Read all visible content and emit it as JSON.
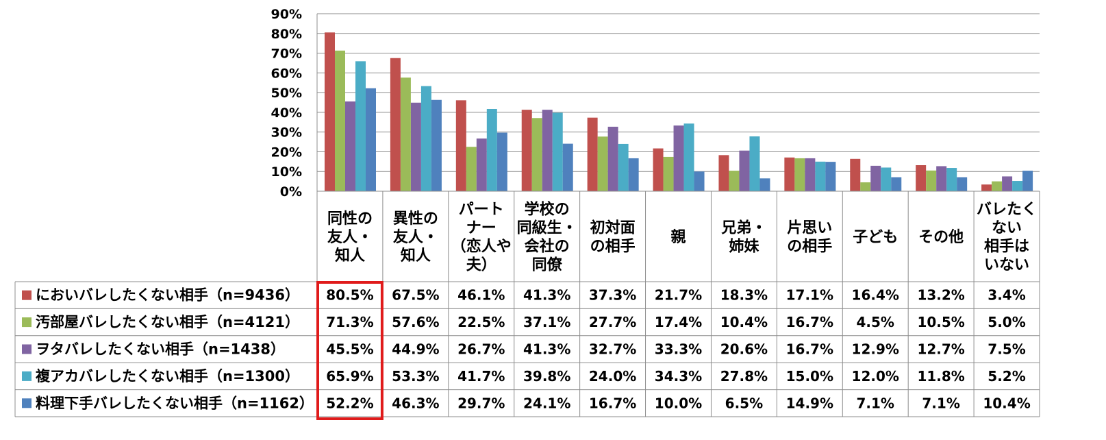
{
  "chart_data": {
    "type": "bar",
    "title": "",
    "xlabel": "",
    "ylabel": "",
    "ylim": [
      0,
      90
    ],
    "yticks": [
      "0%",
      "10%",
      "20%",
      "30%",
      "40%",
      "50%",
      "60%",
      "70%",
      "80%",
      "90%"
    ],
    "grid": true,
    "categories": [
      [
        "同性の",
        "友人・",
        "知人"
      ],
      [
        "異性の",
        "友人・",
        "知人"
      ],
      [
        "パート",
        "ナー",
        "（恋人や",
        "夫）"
      ],
      [
        "学校の",
        "同級生・",
        "会社の",
        "同僚"
      ],
      [
        "初対面",
        "の相手"
      ],
      [
        "親"
      ],
      [
        "兄弟・",
        "姉妹"
      ],
      [
        "片思い",
        "の相手"
      ],
      [
        "子ども"
      ],
      [
        "その他"
      ],
      [
        "バレたく",
        "ない",
        "相手は",
        "いない"
      ]
    ],
    "series": [
      {
        "name": "においバレしたくない相手（n=9436）",
        "color": "#c0504d",
        "values": [
          80.5,
          67.5,
          46.1,
          41.3,
          37.3,
          21.7,
          18.3,
          17.1,
          16.4,
          13.2,
          3.4
        ],
        "labels": [
          "80.5%",
          "67.5%",
          "46.1%",
          "41.3%",
          "37.3%",
          "21.7%",
          "18.3%",
          "17.1%",
          "16.4%",
          "13.2%",
          "3.4%"
        ]
      },
      {
        "name": "汚部屋バレしたくない相手（n=4121）",
        "color": "#9bbb59",
        "values": [
          71.3,
          57.6,
          22.5,
          37.1,
          27.7,
          17.4,
          10.4,
          16.7,
          4.5,
          10.5,
          5.0
        ],
        "labels": [
          "71.3%",
          "57.6%",
          "22.5%",
          "37.1%",
          "27.7%",
          "17.4%",
          "10.4%",
          "16.7%",
          "4.5%",
          "10.5%",
          "5.0%"
        ]
      },
      {
        "name": "ヲタバレしたくない相手（n=1438）",
        "color": "#8064a2",
        "values": [
          45.5,
          44.9,
          26.7,
          41.3,
          32.7,
          33.3,
          20.6,
          16.7,
          12.9,
          12.7,
          7.5
        ],
        "labels": [
          "45.5%",
          "44.9%",
          "26.7%",
          "41.3%",
          "32.7%",
          "33.3%",
          "20.6%",
          "16.7%",
          "12.9%",
          "12.7%",
          "7.5%"
        ]
      },
      {
        "name": "複アカバレしたくない相手（n=1300）",
        "color": "#4bacc6",
        "values": [
          65.9,
          53.3,
          41.7,
          39.8,
          24.0,
          34.3,
          27.8,
          15.0,
          12.0,
          11.8,
          5.2
        ],
        "labels": [
          "65.9%",
          "53.3%",
          "41.7%",
          "39.8%",
          "24.0%",
          "34.3%",
          "27.8%",
          "15.0%",
          "12.0%",
          "11.8%",
          "5.2%"
        ]
      },
      {
        "name": "料理下手バレしたくない相手（n=1162）",
        "color": "#4f81bd",
        "values": [
          52.2,
          46.3,
          29.7,
          24.1,
          16.7,
          10.0,
          6.5,
          14.9,
          7.1,
          7.1,
          10.4
        ],
        "labels": [
          "52.2%",
          "46.3%",
          "29.7%",
          "24.1%",
          "16.7%",
          "10.0%",
          "6.5%",
          "14.9%",
          "7.1%",
          "7.1%",
          "10.4%"
        ]
      }
    ],
    "highlight": {
      "category_index": 0,
      "color": "#e01b1b"
    },
    "legend": "table-rows"
  }
}
